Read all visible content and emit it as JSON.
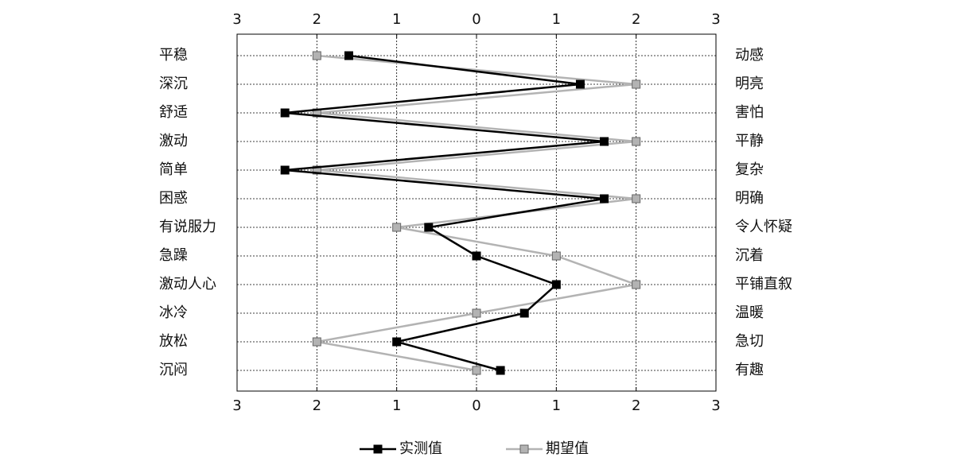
{
  "chart_data": {
    "type": "line",
    "orientation": "horizontal",
    "categories": [
      "平稳",
      "深沉",
      "舒适",
      "激动",
      "简单",
      "困惑",
      "有说服力",
      "急躁",
      "激动人心",
      "冰冷",
      "放松",
      "沉闷"
    ],
    "categories_right": [
      "动感",
      "明亮",
      "害怕",
      "平静",
      "复杂",
      "明确",
      "令人怀疑",
      "沉着",
      "平铺直叙",
      "温暖",
      "急切",
      "有趣"
    ],
    "series": [
      {
        "name": "实测值",
        "color": "#000000",
        "values": [
          -1.6,
          1.3,
          -2.4,
          1.6,
          -2.4,
          1.6,
          -0.6,
          0,
          1.0,
          0.6,
          -1.0,
          0.3
        ]
      },
      {
        "name": "期望值",
        "color": "#b3b3b3",
        "values": [
          -2,
          2,
          -2,
          2,
          -2,
          2,
          -1,
          1,
          2,
          0,
          -2,
          0
        ]
      }
    ],
    "xlim": [
      -3,
      3
    ],
    "xticks": [
      {
        "value": -3,
        "label": "3"
      },
      {
        "value": -2,
        "label": "2"
      },
      {
        "value": -1,
        "label": "1"
      },
      0,
      1,
      2,
      3
    ],
    "grid": true,
    "legend": "bottom"
  }
}
